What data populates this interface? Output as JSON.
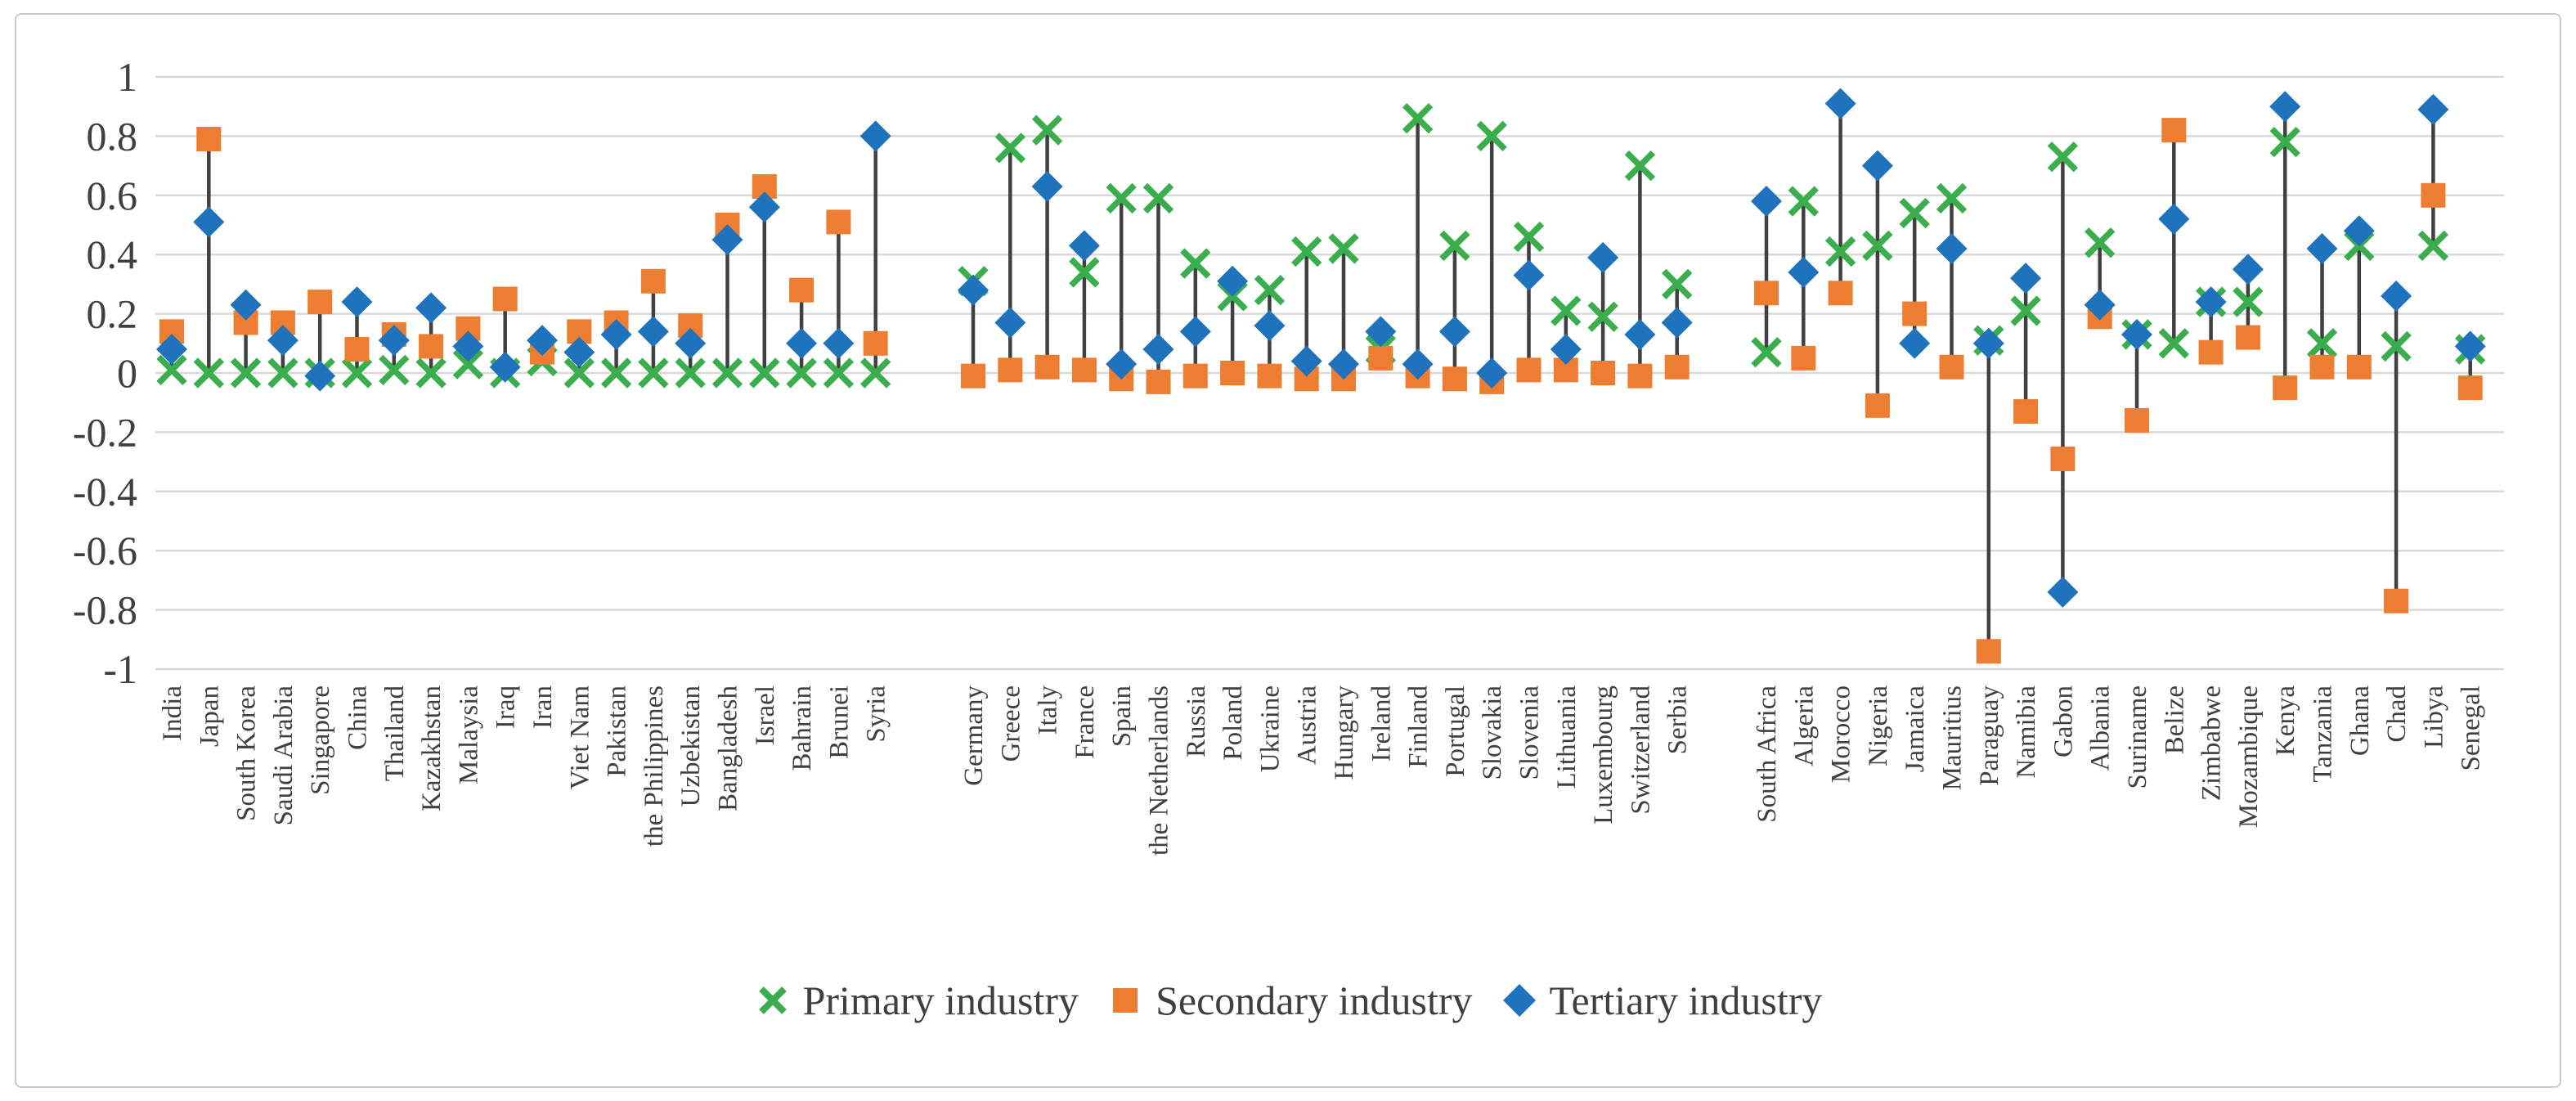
{
  "figure": {
    "background": "#ffffff",
    "border_color": "#c9c9c9",
    "gridline_color": "#d9d9d9",
    "highlow_line_color": "#404040",
    "text_color": "#3f3f3f"
  },
  "chart_data": {
    "type": "scatter",
    "title": "",
    "xlabel": "",
    "ylabel": "",
    "ylim": [
      -1,
      1
    ],
    "grid": true,
    "legend_position": "bottom",
    "high_low_lines": true,
    "y_ticks": [
      "1",
      "0.8",
      "0.6",
      "0.4",
      "0.2",
      "0",
      "-0.2",
      "-0.4",
      "-0.6",
      "-0.8",
      "-1"
    ],
    "y_tick_values": [
      1,
      0.8,
      0.6,
      0.4,
      0.2,
      0,
      -0.2,
      -0.4,
      -0.6,
      -0.8,
      -1
    ],
    "category_groups": [
      [
        "India",
        "Japan",
        "South Korea",
        "Saudi Arabia",
        "Singapore",
        "China",
        "Thailand",
        "Kazakhstan",
        "Malaysia",
        "Iraq",
        "Iran",
        "Viet Nam",
        "Pakistan",
        "the Philippines",
        "Uzbekistan",
        "Bangladesh",
        "Israel",
        "Bahrain",
        "Brunei",
        "Syria"
      ],
      [
        "Germany",
        "Greece",
        "Italy",
        "France",
        "Spain",
        "the Netherlands",
        "Russia",
        "Poland",
        "Ukraine",
        "Austria",
        "Hungary",
        "Ireland",
        "Finland",
        "Portugal",
        "Slovakia",
        "Slovenia",
        "Lithuania",
        "Luxembourg",
        "Switzerland",
        "Serbia"
      ],
      [
        "South Africa",
        "Algeria",
        "Morocco",
        "Nigeria",
        "Jamaica",
        "Mauritius",
        "Paraguay",
        "Namibia",
        "Gabon",
        "Albania",
        "Suriname",
        "Belize",
        "Zimbabwe",
        "Mozambique",
        "Kenya",
        "Tanzania",
        "Ghana",
        "Chad",
        "Libya",
        "Senegal"
      ]
    ],
    "series": [
      {
        "name": "Primary industry",
        "marker": "x",
        "color": "#3aad4c",
        "values": [
          0.01,
          0.0,
          0.0,
          0.0,
          0.0,
          0.0,
          0.01,
          0.0,
          0.03,
          0.0,
          0.04,
          0.0,
          0.0,
          0.0,
          0.0,
          0.0,
          0.0,
          0.0,
          0.0,
          0.0,
          0.31,
          0.76,
          0.82,
          0.34,
          0.59,
          0.59,
          0.37,
          0.26,
          0.28,
          0.41,
          0.42,
          0.08,
          0.86,
          0.43,
          0.8,
          0.46,
          0.21,
          0.19,
          0.7,
          0.3,
          0.07,
          0.58,
          0.41,
          0.43,
          0.54,
          0.59,
          0.11,
          0.21,
          0.73,
          0.44,
          0.13,
          0.1,
          0.24,
          0.24,
          0.78,
          0.1,
          0.43,
          0.09,
          0.43,
          0.08
        ]
      },
      {
        "name": "Secondary industry",
        "marker": "square",
        "color": "#ed7d31",
        "values": [
          0.14,
          0.79,
          0.17,
          0.17,
          0.24,
          0.08,
          0.13,
          0.09,
          0.15,
          0.25,
          0.07,
          0.14,
          0.17,
          0.31,
          0.16,
          0.5,
          0.63,
          0.28,
          0.51,
          0.1,
          -0.01,
          0.01,
          0.02,
          0.01,
          -0.02,
          -0.03,
          -0.01,
          0.0,
          -0.01,
          -0.02,
          -0.02,
          0.05,
          -0.01,
          -0.02,
          -0.03,
          0.01,
          0.01,
          0.0,
          -0.01,
          0.02,
          0.27,
          0.05,
          0.27,
          -0.11,
          0.2,
          0.02,
          -0.94,
          -0.13,
          -0.29,
          0.19,
          -0.16,
          0.82,
          0.07,
          0.12,
          -0.05,
          0.02,
          0.02,
          -0.77,
          0.6,
          -0.05
        ]
      },
      {
        "name": "Tertiary industry",
        "marker": "diamond",
        "color": "#1f72bc",
        "values": [
          0.08,
          0.51,
          0.23,
          0.11,
          -0.01,
          0.24,
          0.11,
          0.22,
          0.09,
          0.02,
          0.11,
          0.07,
          0.13,
          0.14,
          0.1,
          0.45,
          0.56,
          0.1,
          0.1,
          0.8,
          0.28,
          0.17,
          0.63,
          0.43,
          0.03,
          0.08,
          0.14,
          0.31,
          0.16,
          0.04,
          0.03,
          0.14,
          0.03,
          0.14,
          0.0,
          0.33,
          0.08,
          0.39,
          0.13,
          0.17,
          0.58,
          0.34,
          0.91,
          0.7,
          0.1,
          0.42,
          0.1,
          0.32,
          -0.74,
          0.23,
          0.13,
          0.52,
          0.24,
          0.35,
          0.9,
          0.42,
          0.48,
          0.26,
          0.89,
          0.09
        ]
      }
    ]
  }
}
